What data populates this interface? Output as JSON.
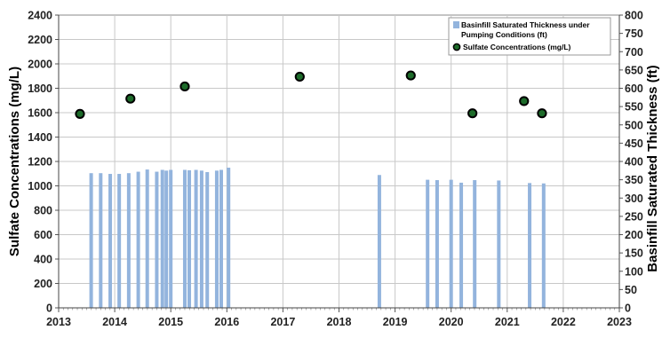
{
  "chart_data": {
    "type": "bar+scatter",
    "x_axis": {
      "min": 2013,
      "max": 2023,
      "ticks": [
        "2013",
        "2014",
        "2015",
        "2016",
        "2017",
        "2018",
        "2019",
        "2020",
        "2021",
        "2022",
        "2023"
      ]
    },
    "y_left": {
      "label": "Sulfate Concentrations (mg/L)",
      "min": 0,
      "max": 2400,
      "ticks": [
        "0",
        "200",
        "400",
        "600",
        "800",
        "1000",
        "1200",
        "1400",
        "1600",
        "1800",
        "2000",
        "2200",
        "2400"
      ]
    },
    "y_right": {
      "label": "Basinfill Saturated Thickness (ft)",
      "min": 0,
      "max": 800,
      "ticks": [
        "0",
        "50",
        "100",
        "150",
        "200",
        "250",
        "300",
        "350",
        "400",
        "450",
        "500",
        "550",
        "600",
        "650",
        "700",
        "750",
        "800"
      ]
    },
    "grid": true,
    "legend_position": "top-right",
    "series": [
      {
        "name": "Basinfill Saturated Thickness under Pumping Conditions (ft)",
        "axis": "right",
        "kind": "bar",
        "color": "#93b4dd",
        "points": [
          {
            "x": 2013.58,
            "y": 368
          },
          {
            "x": 2013.75,
            "y": 368
          },
          {
            "x": 2013.92,
            "y": 366
          },
          {
            "x": 2014.08,
            "y": 366
          },
          {
            "x": 2014.25,
            "y": 368
          },
          {
            "x": 2014.42,
            "y": 372
          },
          {
            "x": 2014.58,
            "y": 378
          },
          {
            "x": 2014.75,
            "y": 372
          },
          {
            "x": 2014.85,
            "y": 377
          },
          {
            "x": 2014.92,
            "y": 375
          },
          {
            "x": 2015.0,
            "y": 377
          },
          {
            "x": 2015.25,
            "y": 377
          },
          {
            "x": 2015.33,
            "y": 376
          },
          {
            "x": 2015.45,
            "y": 377
          },
          {
            "x": 2015.55,
            "y": 375
          },
          {
            "x": 2015.65,
            "y": 371
          },
          {
            "x": 2015.82,
            "y": 375
          },
          {
            "x": 2015.9,
            "y": 377
          },
          {
            "x": 2016.03,
            "y": 383
          },
          {
            "x": 2018.72,
            "y": 363
          },
          {
            "x": 2019.58,
            "y": 350
          },
          {
            "x": 2019.75,
            "y": 349
          },
          {
            "x": 2020.0,
            "y": 350
          },
          {
            "x": 2020.18,
            "y": 342
          },
          {
            "x": 2020.42,
            "y": 349
          },
          {
            "x": 2020.85,
            "y": 348
          },
          {
            "x": 2021.4,
            "y": 341
          },
          {
            "x": 2021.65,
            "y": 340
          }
        ]
      },
      {
        "name": "Sulfate Concentrations (mg/L)",
        "axis": "left",
        "kind": "scatter",
        "color": "#1d6b2a",
        "points": [
          {
            "x": 2013.38,
            "y": 1590
          },
          {
            "x": 2014.28,
            "y": 1715
          },
          {
            "x": 2015.25,
            "y": 1815
          },
          {
            "x": 2017.3,
            "y": 1895
          },
          {
            "x": 2019.28,
            "y": 1905
          },
          {
            "x": 2020.38,
            "y": 1595
          },
          {
            "x": 2021.3,
            "y": 1695
          },
          {
            "x": 2021.62,
            "y": 1595
          }
        ]
      }
    ]
  },
  "legend": [
    {
      "label_main": "Basinfill Saturated Thickness under",
      "label_cont": "Pumping Conditions (ft)"
    },
    {
      "label_main": "Sulfate Concentrations (mg/L)"
    }
  ]
}
